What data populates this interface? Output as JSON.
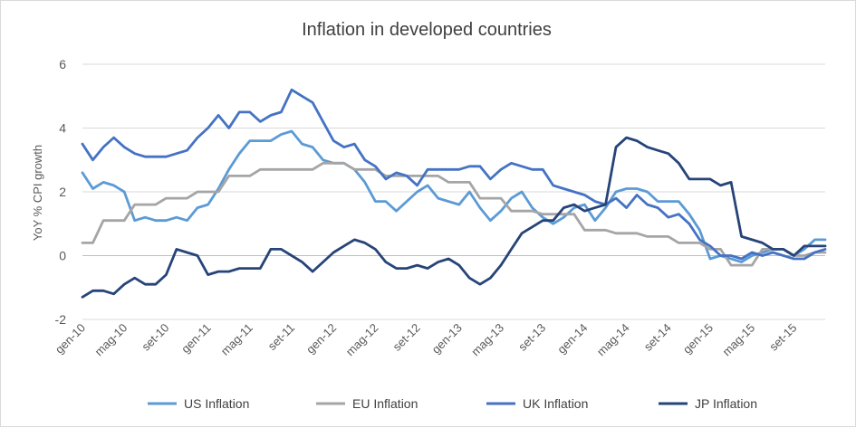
{
  "chart_data": {
    "type": "line",
    "title": "Inflation in developed countries",
    "ylabel": "YoY % CPI growth",
    "xlabel": "",
    "ylim": [
      -2,
      6
    ],
    "yticks": [
      -2,
      0,
      2,
      4,
      6
    ],
    "grid": true,
    "legend_position": "bottom",
    "x": [
      "gen-10",
      "feb-10",
      "mar-10",
      "apr-10",
      "mag-10",
      "giu-10",
      "lug-10",
      "ago-10",
      "set-10",
      "ott-10",
      "nov-10",
      "dic-10",
      "gen-11",
      "feb-11",
      "mar-11",
      "apr-11",
      "mag-11",
      "giu-11",
      "lug-11",
      "ago-11",
      "set-11",
      "ott-11",
      "nov-11",
      "dic-11",
      "gen-12",
      "feb-12",
      "mar-12",
      "apr-12",
      "mag-12",
      "giu-12",
      "lug-12",
      "ago-12",
      "set-12",
      "ott-12",
      "nov-12",
      "dic-12",
      "gen-13",
      "feb-13",
      "mar-13",
      "apr-13",
      "mag-13",
      "giu-13",
      "lug-13",
      "ago-13",
      "set-13",
      "ott-13",
      "nov-13",
      "dic-13",
      "gen-14",
      "feb-14",
      "mar-14",
      "apr-14",
      "mag-14",
      "giu-14",
      "lug-14",
      "ago-14",
      "set-14",
      "ott-14",
      "nov-14",
      "dic-14",
      "gen-15",
      "feb-15",
      "mar-15",
      "apr-15",
      "mag-15",
      "giu-15",
      "lug-15",
      "ago-15",
      "set-15",
      "ott-15",
      "nov-15",
      "dic-15"
    ],
    "xtick_labels": [
      "gen-10",
      "mag-10",
      "set-10",
      "gen-11",
      "mag-11",
      "set-11",
      "gen-12",
      "mag-12",
      "set-12",
      "gen-13",
      "mag-13",
      "set-13",
      "gen-14",
      "mag-14",
      "set-14",
      "gen-15",
      "mag-15",
      "set-15"
    ],
    "series": [
      {
        "name": "US Inflation",
        "color": "#5b9bd5",
        "values": [
          2.6,
          2.1,
          2.3,
          2.2,
          2.0,
          1.1,
          1.2,
          1.1,
          1.1,
          1.2,
          1.1,
          1.5,
          1.6,
          2.1,
          2.7,
          3.2,
          3.6,
          3.6,
          3.6,
          3.8,
          3.9,
          3.5,
          3.4,
          3.0,
          2.9,
          2.9,
          2.7,
          2.3,
          1.7,
          1.7,
          1.4,
          1.7,
          2.0,
          2.2,
          1.8,
          1.7,
          1.6,
          2.0,
          1.5,
          1.1,
          1.4,
          1.8,
          2.0,
          1.5,
          1.2,
          1.0,
          1.2,
          1.5,
          1.6,
          1.1,
          1.5,
          2.0,
          2.1,
          2.1,
          2.0,
          1.7,
          1.7,
          1.7,
          1.3,
          0.8,
          -0.1,
          0.0,
          -0.1,
          -0.2,
          0.0,
          0.1,
          0.2,
          0.2,
          0.0,
          0.2,
          0.5,
          0.5
        ]
      },
      {
        "name": "EU Inflation",
        "color": "#a5a5a5",
        "values": [
          0.4,
          0.4,
          1.1,
          1.1,
          1.1,
          1.6,
          1.6,
          1.6,
          1.8,
          1.8,
          1.8,
          2.0,
          2.0,
          2.0,
          2.5,
          2.5,
          2.5,
          2.7,
          2.7,
          2.7,
          2.7,
          2.7,
          2.7,
          2.9,
          2.9,
          2.9,
          2.7,
          2.7,
          2.7,
          2.5,
          2.5,
          2.5,
          2.5,
          2.5,
          2.5,
          2.3,
          2.3,
          2.3,
          1.8,
          1.8,
          1.8,
          1.4,
          1.4,
          1.4,
          1.3,
          1.3,
          1.3,
          1.3,
          0.8,
          0.8,
          0.8,
          0.7,
          0.7,
          0.7,
          0.6,
          0.6,
          0.6,
          0.4,
          0.4,
          0.4,
          0.2,
          0.2,
          -0.3,
          -0.3,
          -0.3,
          0.2,
          0.2,
          0.2,
          0.0,
          0.0,
          0.1,
          0.1
        ]
      },
      {
        "name": "UK Inflation",
        "color": "#4472c4",
        "values": [
          3.5,
          3.0,
          3.4,
          3.7,
          3.4,
          3.2,
          3.1,
          3.1,
          3.1,
          3.2,
          3.3,
          3.7,
          4.0,
          4.4,
          4.0,
          4.5,
          4.5,
          4.2,
          4.4,
          4.5,
          5.2,
          5.0,
          4.8,
          4.2,
          3.6,
          3.4,
          3.5,
          3.0,
          2.8,
          2.4,
          2.6,
          2.5,
          2.2,
          2.7,
          2.7,
          2.7,
          2.7,
          2.8,
          2.8,
          2.4,
          2.7,
          2.9,
          2.8,
          2.7,
          2.7,
          2.2,
          2.1,
          2.0,
          1.9,
          1.7,
          1.6,
          1.8,
          1.5,
          1.9,
          1.6,
          1.5,
          1.2,
          1.3,
          1.0,
          0.5,
          0.3,
          0.0,
          0.0,
          -0.1,
          0.1,
          0.0,
          0.1,
          0.0,
          -0.1,
          -0.1,
          0.1,
          0.2
        ]
      },
      {
        "name": "JP Inflation",
        "color": "#264478",
        "values": [
          -1.3,
          -1.1,
          -1.1,
          -1.2,
          -0.9,
          -0.7,
          -0.9,
          -0.9,
          -0.6,
          0.2,
          0.1,
          0.0,
          -0.6,
          -0.5,
          -0.5,
          -0.4,
          -0.4,
          -0.4,
          0.2,
          0.2,
          0.0,
          -0.2,
          -0.5,
          -0.2,
          0.1,
          0.3,
          0.5,
          0.4,
          0.2,
          -0.2,
          -0.4,
          -0.4,
          -0.3,
          -0.4,
          -0.2,
          -0.1,
          -0.3,
          -0.7,
          -0.9,
          -0.7,
          -0.3,
          0.2,
          0.7,
          0.9,
          1.1,
          1.1,
          1.5,
          1.6,
          1.4,
          1.5,
          1.6,
          3.4,
          3.7,
          3.6,
          3.4,
          3.3,
          3.2,
          2.9,
          2.4,
          2.4,
          2.4,
          2.2,
          2.3,
          0.6,
          0.5,
          0.4,
          0.2,
          0.2,
          0.0,
          0.3,
          0.3,
          0.3
        ]
      }
    ]
  }
}
